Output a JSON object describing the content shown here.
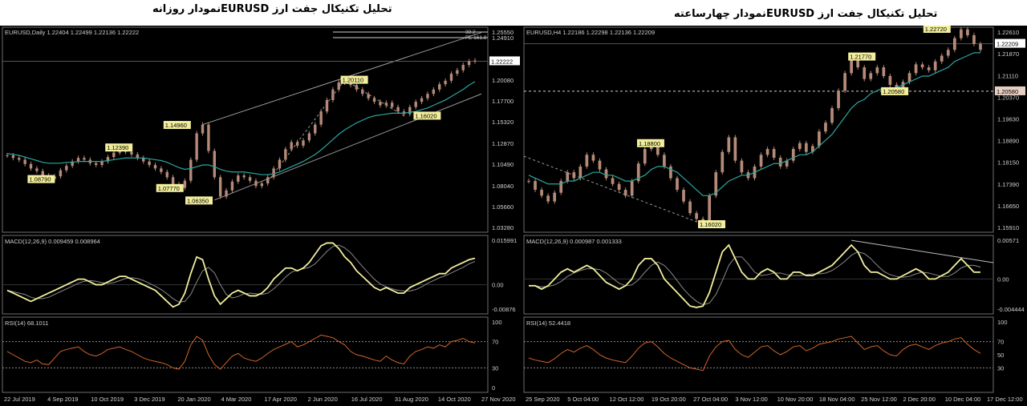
{
  "titles": {
    "left": "تحلیل تکنیکال جفت ارز  EURUSDنمودار روزانه",
    "right": "تحلیل تکنیکال جفت ارز  EURUSDنمودار چهارساعته"
  },
  "colors": {
    "background": "#000000",
    "candle": "#b58a78",
    "ma": "#2aa6a0",
    "macd": "#f2ee9c",
    "rsi": "#d0662a",
    "label_bg": "#f2ee9c",
    "channel": "#9a9a9a"
  },
  "chart_data": [
    {
      "type": "line",
      "name": "daily",
      "header": "EURUSD,Daily  1.22404 1.22499 1.22136 1.22222",
      "price_ticks": [
        "1.25550",
        "1.24910",
        "1.22222",
        "1.20080",
        "1.17700",
        "1.15320",
        "1.12870",
        "1.10490",
        "1.08040",
        "1.05660",
        "1.03280"
      ],
      "price_ylim": [
        1.0328,
        1.2555
      ],
      "current_price": "1.22222",
      "fib_label": "FE 161.8",
      "level_label": "38.2",
      "annotations": [
        {
          "text": "1.14960",
          "x": 0.36,
          "y": 1.1496
        },
        {
          "text": "1.12390",
          "x": 0.24,
          "y": 1.1239
        },
        {
          "text": "1.08790",
          "x": 0.08,
          "y": 1.0879
        },
        {
          "text": "1.07770",
          "x": 0.345,
          "y": 1.0777
        },
        {
          "text": "1.06350",
          "x": 0.405,
          "y": 1.0635
        },
        {
          "text": "1.20110",
          "x": 0.725,
          "y": 1.2011
        },
        {
          "text": "1.16020",
          "x": 0.875,
          "y": 1.1602
        }
      ],
      "close": [
        1.115,
        1.112,
        1.11,
        1.105,
        1.1,
        1.097,
        1.092,
        1.088,
        1.091,
        1.098,
        1.103,
        1.108,
        1.112,
        1.11,
        1.106,
        1.104,
        1.108,
        1.113,
        1.118,
        1.121,
        1.119,
        1.116,
        1.112,
        1.108,
        1.104,
        1.1,
        1.096,
        1.09,
        1.082,
        1.078,
        1.086,
        1.11,
        1.14,
        1.15,
        1.12,
        1.09,
        1.068,
        1.075,
        1.085,
        1.092,
        1.09,
        1.086,
        1.08,
        1.083,
        1.09,
        1.1,
        1.11,
        1.122,
        1.13,
        1.126,
        1.132,
        1.14,
        1.15,
        1.165,
        1.178,
        1.19,
        1.198,
        1.201,
        1.195,
        1.19,
        1.185,
        1.18,
        1.176,
        1.172,
        1.175,
        1.17,
        1.165,
        1.162,
        1.17,
        1.176,
        1.18,
        1.185,
        1.19,
        1.196,
        1.2,
        1.208,
        1.212,
        1.218,
        1.222,
        1.223
      ],
      "ma": [
        1.117,
        1.116,
        1.115,
        1.113,
        1.111,
        1.109,
        1.107,
        1.106,
        1.106,
        1.106,
        1.107,
        1.107,
        1.108,
        1.108,
        1.108,
        1.108,
        1.108,
        1.109,
        1.11,
        1.111,
        1.112,
        1.112,
        1.112,
        1.112,
        1.111,
        1.11,
        1.109,
        1.107,
        1.104,
        1.101,
        1.099,
        1.1,
        1.102,
        1.104,
        1.104,
        1.102,
        1.099,
        1.097,
        1.096,
        1.096,
        1.096,
        1.095,
        1.094,
        1.093,
        1.093,
        1.094,
        1.096,
        1.099,
        1.102,
        1.105,
        1.108,
        1.112,
        1.116,
        1.121,
        1.127,
        1.133,
        1.139,
        1.144,
        1.148,
        1.152,
        1.155,
        1.158,
        1.16,
        1.161,
        1.162,
        1.163,
        1.163,
        1.163,
        1.164,
        1.165,
        1.167,
        1.169,
        1.172,
        1.175,
        1.178,
        1.182,
        1.186,
        1.19,
        1.195,
        1.199
      ],
      "macd_header": "MACD(12,26,9) 0.009459 0.008964",
      "macd_ticks": [
        "0.015991",
        "0.00",
        "-0.00876"
      ],
      "macd_ylim": [
        -0.00876,
        0.015991
      ],
      "macd": [
        -0.002,
        -0.003,
        -0.004,
        -0.005,
        -0.006,
        -0.005,
        -0.004,
        -0.003,
        -0.002,
        -0.001,
        0.0,
        0.001,
        0.002,
        0.002,
        0.001,
        0.0,
        0.0,
        0.001,
        0.002,
        0.003,
        0.003,
        0.002,
        0.001,
        0.0,
        -0.001,
        -0.002,
        -0.004,
        -0.006,
        -0.008,
        -0.007,
        -0.003,
        0.004,
        0.01,
        0.009,
        0.002,
        -0.004,
        -0.007,
        -0.005,
        -0.003,
        -0.002,
        -0.003,
        -0.004,
        -0.004,
        -0.003,
        -0.001,
        0.002,
        0.004,
        0.006,
        0.006,
        0.005,
        0.006,
        0.008,
        0.011,
        0.014,
        0.015,
        0.015,
        0.013,
        0.01,
        0.008,
        0.005,
        0.003,
        0.001,
        -0.001,
        -0.002,
        -0.001,
        -0.002,
        -0.003,
        -0.003,
        -0.001,
        0.0,
        0.001,
        0.002,
        0.003,
        0.004,
        0.004,
        0.006,
        0.007,
        0.008,
        0.009,
        0.0095
      ],
      "rsi_header": "RSI(14) 68.1011",
      "rsi_ticks": [
        "100",
        "70",
        "30",
        "0"
      ],
      "rsi_ylim": [
        0,
        100
      ],
      "rsi": [
        55,
        50,
        45,
        40,
        38,
        42,
        36,
        35,
        45,
        55,
        58,
        60,
        62,
        55,
        50,
        48,
        52,
        58,
        60,
        62,
        58,
        55,
        50,
        45,
        42,
        40,
        38,
        35,
        30,
        28,
        40,
        65,
        78,
        72,
        50,
        35,
        28,
        38,
        48,
        52,
        45,
        42,
        40,
        45,
        52,
        58,
        62,
        66,
        70,
        62,
        65,
        70,
        75,
        80,
        78,
        76,
        70,
        65,
        55,
        50,
        48,
        45,
        42,
        40,
        48,
        42,
        38,
        36,
        48,
        55,
        58,
        62,
        60,
        65,
        62,
        70,
        72,
        75,
        70,
        68
      ],
      "xticks": [
        "22 Jul 2019",
        "4 Sep 2019",
        "10 Oct 2019",
        "3 Dec 2019",
        "20 Jan 2020",
        "4 Mar 2020",
        "17 Apr 2020",
        "2 Jun 2020",
        "16 Jul 2020",
        "31 Aug 2020",
        "14 Oct 2020",
        "27 Nov 2020"
      ]
    },
    {
      "type": "line",
      "name": "h4",
      "header": "EURUSD,H4  1.22186 1.22298 1.22136 1.22209",
      "price_ticks": [
        "1.22610",
        "1.22209",
        "1.21870",
        "1.21110",
        "1.20580",
        "1.20370",
        "1.19630",
        "1.18890",
        "1.18150",
        "1.17390",
        "1.16650",
        "1.15910"
      ],
      "price_ylim": [
        1.1591,
        1.2261
      ],
      "current_price": "1.22209",
      "dotted_level": "1.20580",
      "annotations": [
        {
          "text": "1.22720",
          "x": 0.88,
          "y": 1.2272
        },
        {
          "text": "1.21770",
          "x": 0.72,
          "y": 1.2177
        },
        {
          "text": "1.20580",
          "x": 0.79,
          "y": 1.2058
        },
        {
          "text": "1.18800",
          "x": 0.27,
          "y": 1.188
        },
        {
          "text": "1.16020",
          "x": 0.4,
          "y": 1.1602
        }
      ],
      "close": [
        1.175,
        1.172,
        1.17,
        1.168,
        1.171,
        1.175,
        1.178,
        1.176,
        1.18,
        1.184,
        1.182,
        1.179,
        1.176,
        1.174,
        1.172,
        1.17,
        1.175,
        1.181,
        1.186,
        1.188,
        1.184,
        1.18,
        1.176,
        1.172,
        1.168,
        1.164,
        1.162,
        1.16,
        1.17,
        1.178,
        1.185,
        1.19,
        1.182,
        1.178,
        1.176,
        1.18,
        1.184,
        1.186,
        1.183,
        1.18,
        1.182,
        1.186,
        1.188,
        1.185,
        1.187,
        1.192,
        1.195,
        1.2,
        1.206,
        1.212,
        1.217,
        1.214,
        1.21,
        1.212,
        1.214,
        1.211,
        1.208,
        1.206,
        1.209,
        1.212,
        1.215,
        1.214,
        1.213,
        1.216,
        1.218,
        1.22,
        1.224,
        1.227,
        1.225,
        1.222,
        1.22
      ],
      "ma": [
        1.177,
        1.176,
        1.175,
        1.174,
        1.174,
        1.174,
        1.175,
        1.175,
        1.176,
        1.177,
        1.178,
        1.178,
        1.177,
        1.177,
        1.176,
        1.175,
        1.175,
        1.176,
        1.177,
        1.179,
        1.18,
        1.18,
        1.179,
        1.178,
        1.176,
        1.174,
        1.172,
        1.17,
        1.17,
        1.171,
        1.173,
        1.175,
        1.176,
        1.177,
        1.177,
        1.178,
        1.179,
        1.18,
        1.181,
        1.181,
        1.182,
        1.183,
        1.184,
        1.184,
        1.185,
        1.187,
        1.189,
        1.191,
        1.194,
        1.197,
        1.2,
        1.202,
        1.203,
        1.205,
        1.206,
        1.207,
        1.207,
        1.207,
        1.208,
        1.209,
        1.21,
        1.211,
        1.211,
        1.212,
        1.213,
        1.214,
        1.216,
        1.217,
        1.218,
        1.219,
        1.219
      ],
      "macd_header": "MACD(12,26,9) 0.000987 0.001333",
      "macd_ticks": [
        "0.00571",
        "0.00",
        "-0.004444"
      ],
      "macd_ylim": [
        -0.004444,
        0.00571
      ],
      "macd": [
        -0.001,
        -0.001,
        -0.0015,
        -0.001,
        0.0,
        0.001,
        0.0015,
        0.001,
        0.0015,
        0.002,
        0.0015,
        0.0005,
        -0.0005,
        -0.001,
        -0.0015,
        -0.001,
        0.0,
        0.002,
        0.003,
        0.003,
        0.002,
        0.0,
        -0.001,
        -0.002,
        -0.003,
        -0.004,
        -0.0042,
        -0.004,
        -0.002,
        0.001,
        0.004,
        0.005,
        0.003,
        0.001,
        0.0,
        0.0,
        0.001,
        0.0015,
        0.001,
        0.0,
        0.0,
        0.001,
        0.001,
        0.0005,
        0.0005,
        0.001,
        0.0015,
        0.002,
        0.003,
        0.004,
        0.005,
        0.004,
        0.002,
        0.001,
        0.001,
        0.0005,
        0.0,
        0.0,
        0.0005,
        0.001,
        0.0015,
        0.001,
        0.0,
        0.0,
        0.0005,
        0.001,
        0.002,
        0.003,
        0.002,
        0.001,
        0.001
      ],
      "rsi_header": "RSI(14) 52.4418",
      "rsi_ticks": [
        "100",
        "70",
        "50",
        "30"
      ],
      "rsi_ylim": [
        0,
        100
      ],
      "rsi": [
        45,
        42,
        40,
        38,
        44,
        52,
        58,
        54,
        60,
        64,
        58,
        50,
        45,
        42,
        40,
        38,
        48,
        60,
        68,
        70,
        62,
        52,
        45,
        40,
        35,
        30,
        28,
        26,
        48,
        62,
        70,
        72,
        58,
        50,
        46,
        54,
        62,
        64,
        56,
        50,
        55,
        62,
        64,
        56,
        60,
        66,
        68,
        70,
        74,
        76,
        78,
        68,
        58,
        62,
        64,
        56,
        50,
        48,
        58,
        64,
        66,
        62,
        58,
        64,
        68,
        70,
        74,
        76,
        66,
        58,
        52
      ],
      "xticks": [
        "25 Sep 2020",
        "5 Oct 04:00",
        "12 Oct 12:00",
        "19 Oct 20:00",
        "27 Oct 04:00",
        "3 Nov 12:00",
        "10 Nov 20:00",
        "18 Nov 04:00",
        "25 Nov 12:00",
        "2 Dec 20:00",
        "10 Dec 04:00",
        "17 Dec 12:00"
      ]
    }
  ]
}
